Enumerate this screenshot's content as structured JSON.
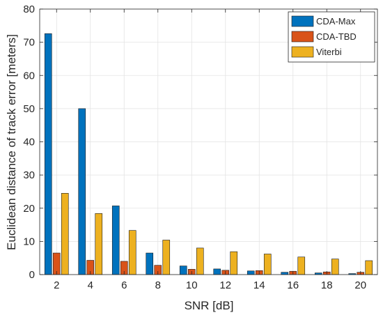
{
  "chart_data": {
    "type": "bar",
    "title": "",
    "xlabel": "SNR [dB]",
    "ylabel": "Euclidean distance of track error [meters]",
    "categories": [
      "2",
      "4",
      "6",
      "8",
      "10",
      "12",
      "14",
      "16",
      "18",
      "20"
    ],
    "series": [
      {
        "name": "CDA-Max",
        "color": "#0072BD",
        "values": [
          72.6,
          50.0,
          20.7,
          6.5,
          2.6,
          1.7,
          1.1,
          0.7,
          0.5,
          0.3
        ]
      },
      {
        "name": "CDA-TBD",
        "color": "#D95319",
        "values": [
          6.5,
          4.3,
          4.0,
          2.8,
          1.6,
          1.3,
          1.2,
          1.0,
          0.8,
          0.7
        ]
      },
      {
        "name": "Viterbi",
        "color": "#EDB120",
        "values": [
          24.5,
          18.4,
          13.3,
          10.4,
          8.0,
          6.9,
          6.2,
          5.3,
          4.7,
          4.2
        ]
      }
    ],
    "ylim": [
      0,
      80
    ],
    "yticks": [
      0,
      10,
      20,
      30,
      40,
      50,
      60,
      70,
      80
    ],
    "grid": true,
    "legend_position": "top-right"
  }
}
